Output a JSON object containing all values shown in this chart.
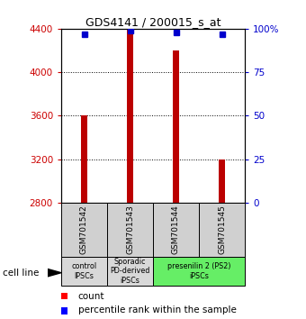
{
  "title": "GDS4141 / 200015_s_at",
  "samples": [
    "GSM701542",
    "GSM701543",
    "GSM701544",
    "GSM701545"
  ],
  "counts": [
    3600,
    4400,
    4200,
    3200
  ],
  "percentiles": [
    97,
    99,
    98,
    97
  ],
  "ylim_left": [
    2800,
    4400
  ],
  "ylim_right": [
    0,
    100
  ],
  "yticks_left": [
    2800,
    3200,
    3600,
    4000,
    4400
  ],
  "yticks_right": [
    0,
    25,
    50,
    75,
    100
  ],
  "ytick_labels_right": [
    "0",
    "25",
    "50",
    "75",
    "100%"
  ],
  "grid_ticks": [
    3200,
    3600,
    4000
  ],
  "bar_color": "#bb0000",
  "dot_color": "#0000cc",
  "bar_width": 0.12,
  "groups": [
    {
      "label": "control\nIPSCs",
      "start": 0,
      "end": 1,
      "color": "#d8d8d8"
    },
    {
      "label": "Sporadic\nPD-derived\niPSCs",
      "start": 1,
      "end": 2,
      "color": "#d8d8d8"
    },
    {
      "label": "presenilin 2 (PS2)\niPSCs",
      "start": 2,
      "end": 4,
      "color": "#66ee66"
    }
  ],
  "cell_line_label": "cell line",
  "legend_count_label": "count",
  "legend_percentile_label": "percentile rank within the sample",
  "bg_color": "#ffffff",
  "tick_label_color_left": "#cc0000",
  "tick_label_color_right": "#0000cc"
}
